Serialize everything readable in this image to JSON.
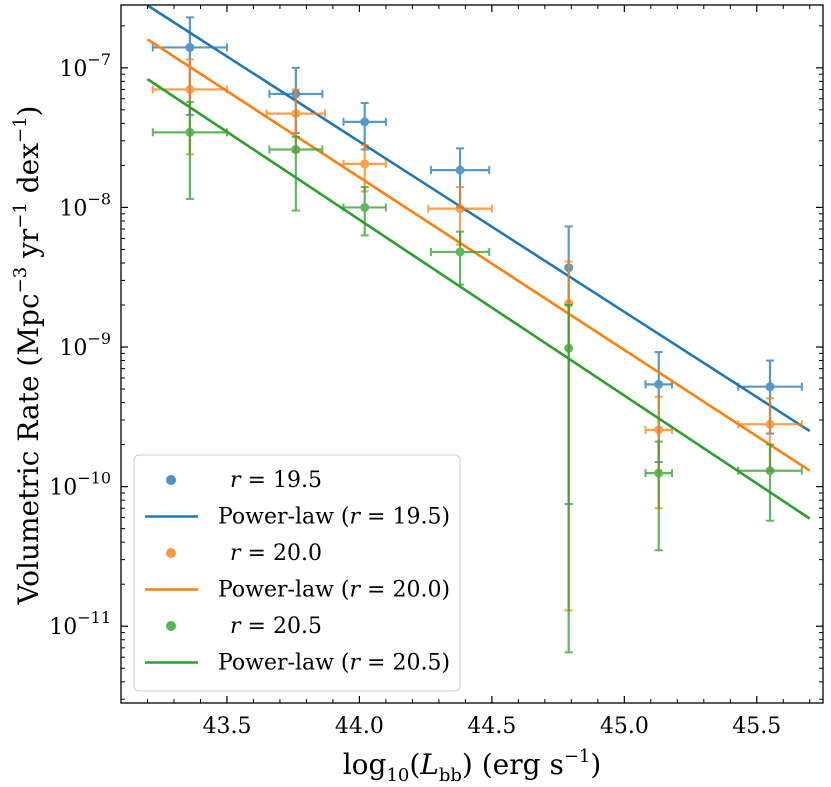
{
  "chart_data": {
    "type": "scatter",
    "title": "",
    "xlabel": "log₁₀(L_bb) (erg s⁻¹)",
    "xlabel_parts": {
      "pre": "log",
      "sub": "10",
      "mid": "(",
      "var": "L",
      "varsub": "bb",
      "post": ") (erg s",
      "sup": "−1",
      "end": ")"
    },
    "ylabel": "Volumetric Rate (Mpc⁻³ yr⁻¹ dex⁻¹)",
    "ylabel_parts": {
      "a": "Volumetric Rate (Mpc",
      "s1": "−3",
      "b": " yr",
      "s2": "−1",
      "c": " dex",
      "s3": "−1",
      "d": ")"
    },
    "xlim": [
      43.1,
      45.75
    ],
    "ylim_log10": [
      -11.55,
      -6.55
    ],
    "yscale": "log",
    "xticks": [
      43.5,
      44.0,
      44.5,
      45.0,
      45.5
    ],
    "xtick_labels": [
      "43.5",
      "44.0",
      "44.5",
      "45.0",
      "45.5"
    ],
    "yticks_log10": [
      -11,
      -10,
      -9,
      -8,
      -7
    ],
    "ytick_labels": [
      {
        "base": "10",
        "exp": "−11"
      },
      {
        "base": "10",
        "exp": "−10"
      },
      {
        "base": "10",
        "exp": "−9"
      },
      {
        "base": "10",
        "exp": "−8"
      },
      {
        "base": "10",
        "exp": "−7"
      }
    ],
    "legend_position": "lower-left",
    "series": [
      {
        "name": "r = 19.5",
        "var": "r",
        "value": "19.5",
        "color": "#1f77b4",
        "kind": "points",
        "points": [
          {
            "x": 43.36,
            "xerr": 0.14,
            "y": 1.4e-07,
            "ylo": 4.6e-08,
            "yhi": 2.3e-07
          },
          {
            "x": 43.76,
            "xerr": 0.1,
            "y": 6.5e-08,
            "ylo": 3.4e-08,
            "yhi": 1e-07
          },
          {
            "x": 44.02,
            "xerr": 0.08,
            "y": 4.1e-08,
            "ylo": 2.6e-08,
            "yhi": 5.6e-08
          },
          {
            "x": 44.38,
            "xerr": 0.11,
            "y": 1.85e-08,
            "ylo": 1e-08,
            "yhi": 2.65e-08
          },
          {
            "x": 44.79,
            "xerr": 0.0,
            "y": 3.7e-09,
            "ylo": 7.5e-11,
            "yhi": 7.3e-09
          },
          {
            "x": 45.13,
            "xerr": 0.05,
            "y": 5.4e-10,
            "ylo": 1.5e-10,
            "yhi": 9.2e-10
          },
          {
            "x": 45.55,
            "xerr": 0.12,
            "y": 5.2e-10,
            "ylo": 2.4e-10,
            "yhi": 8e-10
          }
        ]
      },
      {
        "name": "Power-law (r = 19.5)",
        "label_pre": "Power-law (",
        "var": "r",
        "value": "19.5",
        "label_post": ")",
        "color": "#1f77b4",
        "kind": "line",
        "x": [
          43.2,
          45.7
        ],
        "y": [
          2.8e-07,
          2.5e-10
        ]
      },
      {
        "name": "r = 20.0",
        "var": "r",
        "value": "20.0",
        "color": "#ff7f0e",
        "kind": "points",
        "points": [
          {
            "x": 43.36,
            "xerr": 0.14,
            "y": 7e-08,
            "ylo": 2.4e-08,
            "yhi": 1.15e-07
          },
          {
            "x": 43.76,
            "xerr": 0.11,
            "y": 4.7e-08,
            "ylo": 2.5e-08,
            "yhi": 7e-08
          },
          {
            "x": 44.02,
            "xerr": 0.08,
            "y": 2.05e-08,
            "ylo": 1.3e-08,
            "yhi": 2.8e-08
          },
          {
            "x": 44.38,
            "xerr": 0.12,
            "y": 9.8e-09,
            "ylo": 5.4e-09,
            "yhi": 1.4e-08
          },
          {
            "x": 44.79,
            "xerr": 0.0,
            "y": 2.05e-09,
            "ylo": 1.3e-11,
            "yhi": 4.1e-09
          },
          {
            "x": 45.13,
            "xerr": 0.05,
            "y": 2.55e-10,
            "ylo": 7e-11,
            "yhi": 4.4e-10
          },
          {
            "x": 45.55,
            "xerr": 0.12,
            "y": 2.8e-10,
            "ylo": 1.3e-10,
            "yhi": 4.3e-10
          }
        ]
      },
      {
        "name": "Power-law (r = 20.0)",
        "label_pre": "Power-law (",
        "var": "r",
        "value": "20.0",
        "label_post": ")",
        "color": "#ff7f0e",
        "kind": "line",
        "x": [
          43.2,
          45.7
        ],
        "y": [
          1.6e-07,
          1.3e-10
        ]
      },
      {
        "name": "r = 20.5",
        "var": "r",
        "value": "20.5",
        "color": "#2ca02c",
        "kind": "points",
        "points": [
          {
            "x": 43.36,
            "xerr": 0.14,
            "y": 3.45e-08,
            "ylo": 1.15e-08,
            "yhi": 5.7e-08
          },
          {
            "x": 43.76,
            "xerr": 0.1,
            "y": 2.6e-08,
            "ylo": 9.5e-09,
            "yhi": 3.2e-08
          },
          {
            "x": 44.02,
            "xerr": 0.08,
            "y": 1e-08,
            "ylo": 6.3e-09,
            "yhi": 1.4e-08
          },
          {
            "x": 44.38,
            "xerr": 0.11,
            "y": 4.8e-09,
            "ylo": 2.8e-09,
            "yhi": 6.7e-09
          },
          {
            "x": 44.79,
            "xerr": 0.0,
            "y": 9.8e-10,
            "ylo": 6.5e-12,
            "yhi": 2e-09
          },
          {
            "x": 45.13,
            "xerr": 0.05,
            "y": 1.25e-10,
            "ylo": 3.5e-11,
            "yhi": 2.1e-10
          },
          {
            "x": 45.55,
            "xerr": 0.12,
            "y": 1.3e-10,
            "ylo": 5.7e-11,
            "yhi": 2e-10
          }
        ]
      },
      {
        "name": "Power-law (r = 20.5)",
        "label_pre": "Power-law (",
        "var": "r",
        "value": "20.5",
        "label_post": ")",
        "color": "#2ca02c",
        "kind": "line",
        "x": [
          43.2,
          45.7
        ],
        "y": [
          8.3e-08,
          5.9e-11
        ]
      }
    ]
  }
}
